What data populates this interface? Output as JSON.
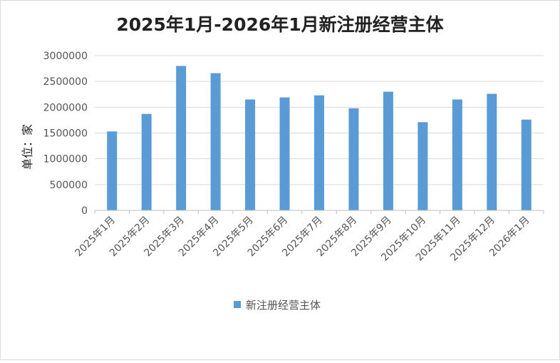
{
  "chart_data": {
    "type": "bar",
    "title": "2025年1月-2026年1月新注册经营主体",
    "ylabel": "单位：家",
    "xlabel": "",
    "ylim": [
      0,
      3000000
    ],
    "yticks": [
      0,
      500000,
      1000000,
      1500000,
      2000000,
      2500000,
      3000000
    ],
    "ytick_labels": [
      "0",
      "500000",
      "1000000",
      "1500000",
      "2000000",
      "2500000",
      "3000000"
    ],
    "grid": true,
    "legend_position": "bottom",
    "categories": [
      "2025年1月",
      "2025年2月",
      "2025年3月",
      "2025年4月",
      "2025年5月",
      "2025年6月",
      "2025年7月",
      "2025年8月",
      "2025年9月",
      "2025年10月",
      "2025年11月",
      "2025年12月",
      "2026年1月"
    ],
    "series": [
      {
        "name": "新注册经营主体",
        "color": "#5b9bd5",
        "values": [
          1530000,
          1870000,
          2800000,
          2660000,
          2150000,
          2190000,
          2230000,
          1980000,
          2300000,
          1710000,
          2150000,
          2260000,
          1760000
        ]
      }
    ]
  }
}
